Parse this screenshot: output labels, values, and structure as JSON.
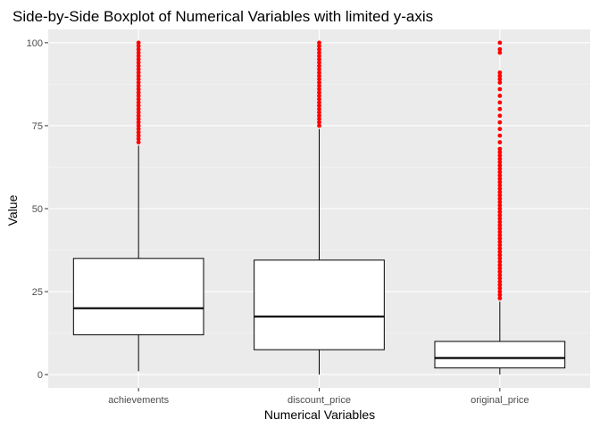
{
  "chart_data": {
    "type": "boxplot",
    "title": "Side-by-Side Boxplot of Numerical Variables with limited y-axis",
    "xlabel": "Numerical Variables",
    "ylabel": "Value",
    "ylim": [
      -4,
      104
    ],
    "yticks": [
      0,
      25,
      50,
      75,
      100
    ],
    "grid": true,
    "colors": {
      "panel": "#ebebeb",
      "grid_major": "#ffffff",
      "grid_minor": "#f5f5f5",
      "box_fill": "#ffffff",
      "box_line": "#000000",
      "outlier": "#ff0000"
    },
    "categories": [
      "achievements",
      "discount_price",
      "original_price"
    ],
    "boxes": [
      {
        "name": "achievements",
        "whisker_low": 1,
        "q1": 12,
        "median": 20,
        "q3": 35,
        "whisker_high": 69,
        "outliers": [
          70,
          71,
          72,
          73,
          74,
          75,
          76,
          77,
          78,
          79,
          80,
          81,
          82,
          83,
          84,
          85,
          86,
          87,
          88,
          89,
          90,
          91,
          92,
          93,
          94,
          95,
          96,
          97,
          98,
          99,
          100
        ]
      },
      {
        "name": "discount_price",
        "whisker_low": 0,
        "q1": 7.5,
        "median": 17.5,
        "q3": 34.5,
        "whisker_high": 74,
        "outliers": [
          75,
          76,
          77,
          78,
          79,
          80,
          81,
          82,
          83,
          84,
          85,
          86,
          87,
          88,
          89,
          90,
          91,
          92,
          93,
          94,
          95,
          96,
          97,
          98,
          99,
          100
        ]
      },
      {
        "name": "original_price",
        "whisker_low": 0,
        "q1": 2,
        "median": 5,
        "q3": 10,
        "whisker_high": 22,
        "outliers": [
          23,
          24,
          25,
          26,
          27,
          28,
          29,
          30,
          31,
          32,
          33,
          34,
          35,
          36,
          37,
          38,
          39,
          40,
          41,
          42,
          43,
          44,
          45,
          46,
          47,
          48,
          49,
          50,
          51,
          52,
          53,
          54,
          55,
          56,
          57,
          58,
          59,
          60,
          61,
          62,
          63,
          64,
          65,
          66,
          67,
          68,
          70,
          72,
          74,
          76,
          78,
          80,
          82,
          84,
          86,
          88,
          89,
          90,
          91,
          97,
          98,
          100
        ]
      }
    ]
  }
}
